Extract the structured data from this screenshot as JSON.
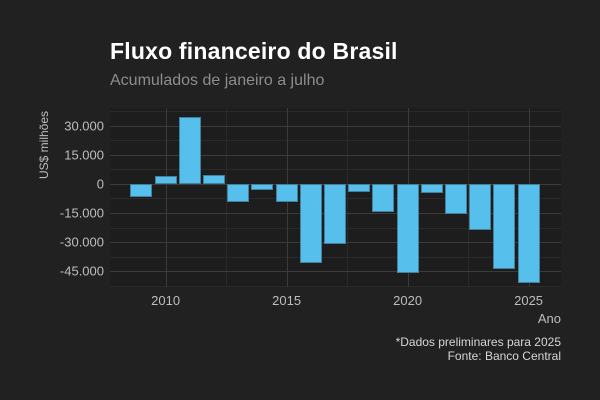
{
  "header": {
    "title": "Fluxo financeiro do Brasil",
    "subtitle": "Acumulados de janeiro a julho"
  },
  "footer": {
    "note": "*Dados preliminares para 2025",
    "source": "Fonte: Banco Central"
  },
  "chart_data": {
    "type": "bar",
    "title": "Fluxo financeiro do Brasil",
    "subtitle": "Acumulados de janeiro a julho",
    "xlabel": "Ano",
    "ylabel": "US$ milhões",
    "x": [
      2009,
      2010,
      2011,
      2012,
      2013,
      2014,
      2015,
      2016,
      2017,
      2018,
      2019,
      2020,
      2021,
      2022,
      2023,
      2024,
      2025
    ],
    "values": [
      -6800,
      4300,
      34300,
      4600,
      -9500,
      -3100,
      -9500,
      -40500,
      -31000,
      -4200,
      -14300,
      -45900,
      -4600,
      -15700,
      -23700,
      -43900,
      -50700
    ],
    "y_ticks": [
      {
        "v": 30000,
        "label": "30.000"
      },
      {
        "v": 15000,
        "label": "15.000"
      },
      {
        "v": 0,
        "label": "0"
      },
      {
        "v": -15000,
        "label": "-15.000"
      },
      {
        "v": -30000,
        "label": "-30.000"
      },
      {
        "v": -45000,
        "label": "-45.000"
      }
    ],
    "x_ticks": [
      {
        "v": 2010,
        "label": "2010"
      },
      {
        "v": 2015,
        "label": "2015"
      },
      {
        "v": 2020,
        "label": "2020"
      },
      {
        "v": 2025,
        "label": "2025"
      }
    ],
    "y_minor": [
      37500,
      22500,
      7500,
      -7500,
      -22500,
      -37500,
      -52500
    ],
    "x_minor": [
      2012.5,
      2017.5,
      2022.5
    ],
    "xlim": [
      2007.7,
      2026.34
    ],
    "ylim": [
      -53000,
      39000
    ],
    "grid": true,
    "legend": "none",
    "colors": {
      "bar_fill": "#57bfeb",
      "bar_border": "#44809e",
      "grid_major": "#3b3b3b",
      "grid_minor": "#2a2a2a",
      "panel_bg": "#1d1d1d",
      "figure_bg": "#212121",
      "title_text": "#ffffff",
      "subtitle_text": "#8d8d8d",
      "axis_text": "#bdbdbd",
      "caption_text": "#d6d6d6"
    }
  }
}
